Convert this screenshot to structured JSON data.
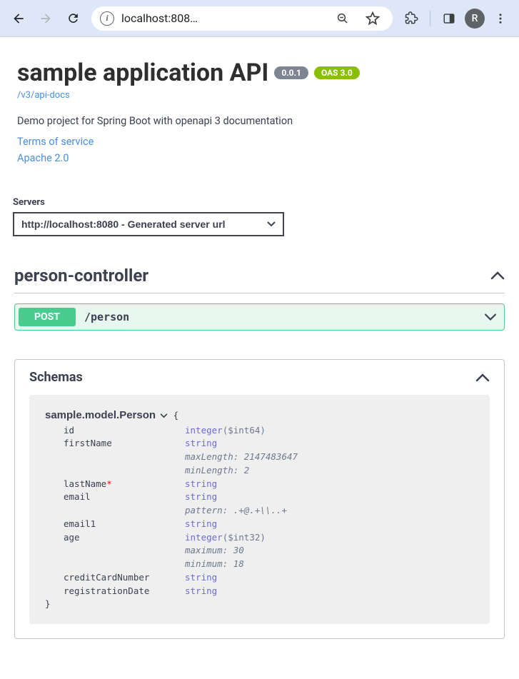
{
  "browser": {
    "url_display": "localhost:808…",
    "avatar_initial": "R"
  },
  "api": {
    "title": "sample application API",
    "version_badge": "0.0.1",
    "oas_badge": "OAS 3.0",
    "docs_link_label": "/v3/api-docs",
    "description": "Demo project for Spring Boot with openapi 3 documentation",
    "terms_link": "Terms of service",
    "license_link": "Apache 2.0"
  },
  "servers": {
    "label": "Servers",
    "selected": "http://localhost:8080 - Generated server url"
  },
  "tag": {
    "name": "person-controller",
    "operation": {
      "method": "POST",
      "path": "/person"
    }
  },
  "schemas": {
    "title": "Schemas",
    "model": {
      "name": "sample.model.Person",
      "open_brace": "{",
      "close_brace": "}",
      "properties": [
        {
          "name": "id",
          "required": false,
          "type": "integer",
          "format": "($int64)",
          "meta": []
        },
        {
          "name": "firstName",
          "required": false,
          "type": "string",
          "format": "",
          "meta": [
            "maxLength: 2147483647",
            "minLength: 2"
          ]
        },
        {
          "name": "lastName",
          "required": true,
          "type": "string",
          "format": "",
          "meta": []
        },
        {
          "name": "email",
          "required": false,
          "type": "string",
          "format": "",
          "meta": [
            "pattern: .+@.+\\\\..+"
          ]
        },
        {
          "name": "email1",
          "required": false,
          "type": "string",
          "format": "",
          "meta": []
        },
        {
          "name": "age",
          "required": false,
          "type": "integer",
          "format": "($int32)",
          "meta": [
            "maximum: 30",
            "minimum: 18"
          ]
        },
        {
          "name": "creditCardNumber",
          "required": false,
          "type": "string",
          "format": "",
          "meta": []
        },
        {
          "name": "registrationDate",
          "required": false,
          "type": "string",
          "format": "",
          "meta": []
        }
      ]
    }
  },
  "colors": {
    "browser_bar_bg": "#dde7f8",
    "link": "#4990e2",
    "post_method": "#49cc90",
    "post_bg": "#e8f6f0",
    "oas_badge": "#89bf04",
    "version_badge": "#7d8492",
    "schema_bg": "#efefef",
    "type_color": "#6b6bd8",
    "required_star": "#ff0000"
  }
}
